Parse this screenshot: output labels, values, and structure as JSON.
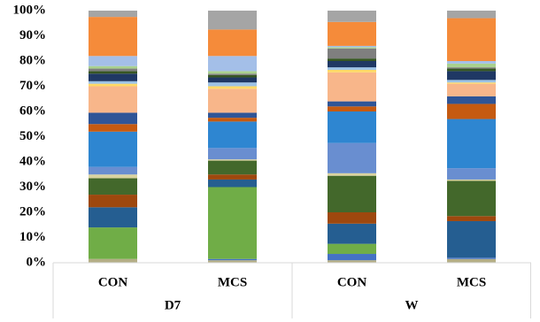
{
  "chart_data": {
    "type": "stacked_bar",
    "categories": [
      "CON",
      "MCS",
      "CON",
      "MCS"
    ],
    "groups": [
      "D7",
      "W"
    ],
    "ylim": [
      0,
      100
    ],
    "yticks": [
      {
        "value": 0,
        "label": "0%"
      },
      {
        "value": 10,
        "label": "10%"
      },
      {
        "value": 20,
        "label": "20%"
      },
      {
        "value": 30,
        "label": "30%"
      },
      {
        "value": 40,
        "label": "40%"
      },
      {
        "value": 50,
        "label": "50%"
      },
      {
        "value": 60,
        "label": "60%"
      },
      {
        "value": 70,
        "label": "70%"
      },
      {
        "value": 80,
        "label": "80%"
      },
      {
        "value": 90,
        "label": "90%"
      },
      {
        "value": 100,
        "label": "100%"
      }
    ],
    "series": [
      {
        "color": "#b4ae86",
        "values": [
          1.5,
          1,
          1,
          1.5
        ]
      },
      {
        "color": "#4472c4",
        "values": [
          0,
          0.5,
          2.5,
          0.5
        ]
      },
      {
        "color": "#70ad47",
        "values": [
          12.5,
          28.5,
          4,
          0
        ]
      },
      {
        "color": "#255e91",
        "values": [
          8,
          3,
          8,
          14.5
        ]
      },
      {
        "color": "#9e480e",
        "values": [
          5,
          2,
          4.5,
          2
        ]
      },
      {
        "color": "#43682b",
        "values": [
          6.5,
          5.5,
          14.5,
          14
        ]
      },
      {
        "color": "#d9d3a0",
        "values": [
          1.5,
          0.5,
          1,
          0.5
        ]
      },
      {
        "color": "#698ed0",
        "values": [
          3,
          4.5,
          12,
          4.5
        ]
      },
      {
        "color": "#2e86d1",
        "values": [
          14,
          10.5,
          12.5,
          19.5
        ]
      },
      {
        "color": "#c55a11",
        "values": [
          3,
          1.5,
          2,
          6
        ]
      },
      {
        "color": "#2f5597",
        "values": [
          4.5,
          2,
          2,
          3
        ]
      },
      {
        "color": "#f8b68a",
        "values": [
          10.5,
          9.5,
          11.5,
          5
        ]
      },
      {
        "color": "#ffd966",
        "values": [
          1,
          1,
          1,
          0.5
        ]
      },
      {
        "color": "#9dc3e6",
        "values": [
          1,
          1.5,
          1,
          1
        ]
      },
      {
        "color": "#1f3864",
        "values": [
          3,
          2,
          2.5,
          3.5
        ]
      },
      {
        "color": "#375623",
        "values": [
          1,
          1,
          1,
          1
        ]
      },
      {
        "color": "#7f7f7f",
        "values": [
          1,
          0.5,
          4,
          0.5
        ]
      },
      {
        "color": "#a9d18e",
        "values": [
          1,
          1,
          0.5,
          1.5
        ]
      },
      {
        "color": "#a4bfe8",
        "values": [
          4,
          6,
          0.5,
          1
        ]
      },
      {
        "color": "#f58b3a",
        "values": [
          15.5,
          10.5,
          9.5,
          17
        ]
      },
      {
        "color": "#a5a5a5",
        "values": [
          2.5,
          7.5,
          4.5,
          3
        ]
      }
    ]
  }
}
